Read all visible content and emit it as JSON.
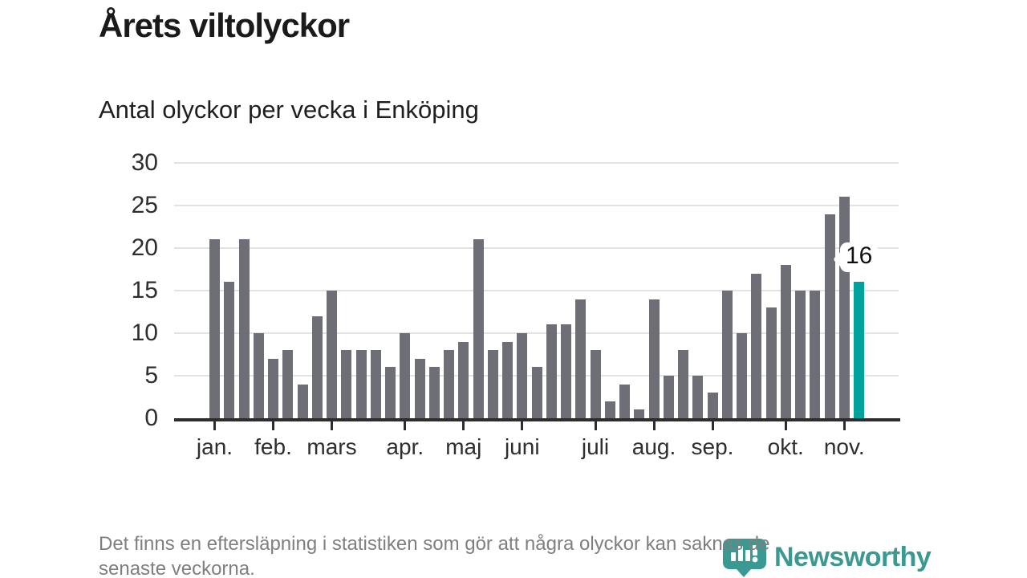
{
  "page": {
    "background": "#ffffff"
  },
  "header": {
    "title": "Årets viltolyckor",
    "subtitle": "Antal olyckor per vecka i Enköping"
  },
  "chart_data": {
    "type": "bar",
    "title": "Antal olyckor per vecka i Enköping",
    "x_unit": "vecka (januari–november)",
    "values": [
      21,
      16,
      21,
      10,
      7,
      8,
      4,
      12,
      15,
      8,
      8,
      8,
      6,
      10,
      7,
      6,
      8,
      9,
      21,
      8,
      9,
      10,
      6,
      11,
      11,
      14,
      8,
      2,
      4,
      1,
      14,
      5,
      8,
      5,
      3,
      15,
      10,
      17,
      13,
      18,
      15,
      15,
      24,
      26,
      16
    ],
    "highlight": {
      "index": 44,
      "value": 16,
      "label": "16"
    },
    "month_ticks": [
      {
        "label": "jan.",
        "week_index": 0
      },
      {
        "label": "feb.",
        "week_index": 4
      },
      {
        "label": "mars",
        "week_index": 8
      },
      {
        "label": "apr.",
        "week_index": 13
      },
      {
        "label": "maj",
        "week_index": 17
      },
      {
        "label": "juni",
        "week_index": 21
      },
      {
        "label": "juli",
        "week_index": 26
      },
      {
        "label": "aug.",
        "week_index": 30
      },
      {
        "label": "sep.",
        "week_index": 34
      },
      {
        "label": "okt.",
        "week_index": 39
      },
      {
        "label": "nov.",
        "week_index": 43
      }
    ],
    "ylim": [
      0,
      30
    ],
    "yticks": [
      0,
      5,
      10,
      15,
      20,
      25,
      30
    ],
    "grid": true,
    "legend": false,
    "colors": {
      "bar": "#6e6e77",
      "highlight": "#00a39b",
      "grid": "#e3e3e3",
      "axis": "#2d2d2d",
      "tick_label": "#2e2e2e"
    }
  },
  "footer": {
    "lines": [
      "Det finns en eftersläpning i statistiken som gör att några olyckor kan saknas de",
      "senaste veckorna."
    ]
  },
  "logo": {
    "text": "Newsworthy",
    "color": "#3a9a92",
    "icon": "newsworthy-chart-bubble-icon"
  }
}
